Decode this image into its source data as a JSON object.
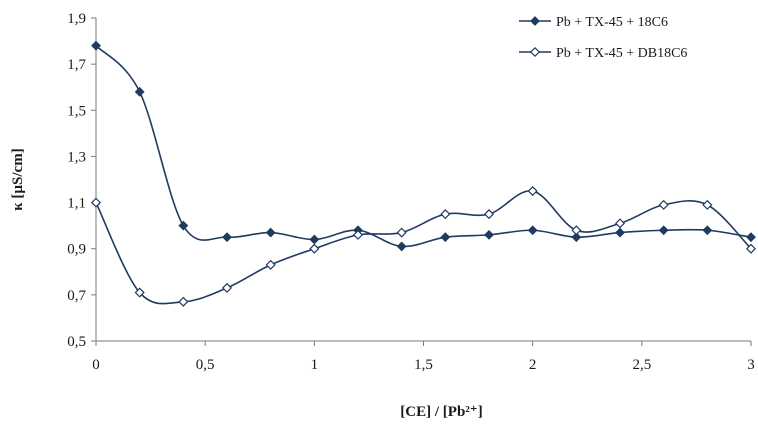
{
  "chart_data": {
    "type": "line",
    "xlabel": "[CE] / [Pb²⁺]",
    "ylabel": "κ [µS/cm]",
    "xlim": [
      0,
      3
    ],
    "ylim": [
      0.5,
      1.9
    ],
    "x_ticks": [
      "0",
      "0,5",
      "1",
      "1,5",
      "2",
      "2,5",
      "3"
    ],
    "y_ticks": [
      "0,5",
      "0,7",
      "0,9",
      "1,1",
      "1,3",
      "1,5",
      "1,7",
      "1,9"
    ],
    "grid": false,
    "legend_position": "top-right",
    "series": [
      {
        "name": "Pb + TX-45 + 18C6",
        "marker": "filled-diamond",
        "color": "#1f3b5f",
        "x": [
          0,
          0.2,
          0.4,
          0.6,
          0.8,
          1.0,
          1.2,
          1.4,
          1.6,
          1.8,
          2.0,
          2.2,
          2.4,
          2.6,
          2.8,
          3.0
        ],
        "values": [
          1.78,
          1.58,
          1.0,
          0.95,
          0.97,
          0.94,
          0.98,
          0.91,
          0.95,
          0.96,
          0.98,
          0.95,
          0.97,
          0.98,
          0.98,
          0.95
        ]
      },
      {
        "name": "Pb + TX-45 + DB18C6",
        "marker": "open-diamond",
        "color": "#1f3b5f",
        "x": [
          0,
          0.2,
          0.4,
          0.6,
          0.8,
          1.0,
          1.2,
          1.4,
          1.6,
          1.8,
          2.0,
          2.2,
          2.4,
          2.6,
          2.8,
          3.0
        ],
        "values": [
          1.1,
          0.71,
          0.67,
          0.73,
          0.83,
          0.9,
          0.96,
          0.97,
          1.05,
          1.05,
          1.15,
          0.98,
          1.01,
          1.09,
          1.09,
          0.9
        ]
      }
    ]
  }
}
